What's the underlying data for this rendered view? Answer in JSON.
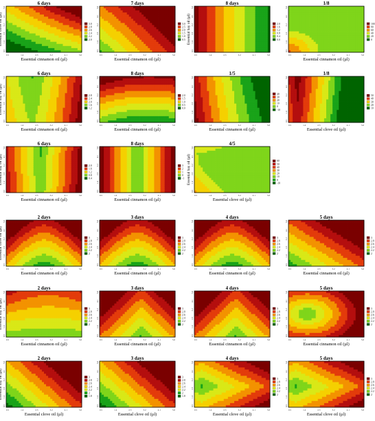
{
  "colors": {
    "scale": [
      "#006400",
      "#19a319",
      "#7fd51a",
      "#d9e817",
      "#f5d000",
      "#f39200",
      "#e33b0b",
      "#b40e0e",
      "#7a0000"
    ]
  },
  "x_ticks": [
    "0.5",
    "1.4",
    "2.3",
    "3.2",
    "4.1",
    "5.0"
  ],
  "charts": [
    {
      "title": "6 days",
      "xlabel": "Essential cinnamon oil (µl)",
      "ylabel": "Essential clove oil (µl)",
      "legend": [
        "3.0",
        "2.8",
        "2.6",
        "2.4",
        "2.2",
        "2.0"
      ],
      "pattern": "a"
    },
    {
      "title": "7 days",
      "xlabel": "Essential cinnamon oil (µl)",
      "ylabel": "",
      "legend": [
        "3.0",
        "2.5",
        "2.0",
        "1.5",
        "1.0",
        "0.5"
      ],
      "pattern": "b"
    },
    {
      "title": "8 days",
      "xlabel": "",
      "ylabel": "Essential bay oil (µl)",
      "legend": [
        "2.0",
        "1.6",
        "1.2",
        "0.8",
        "0.4",
        "0.0"
      ],
      "pattern": "c"
    },
    {
      "title": "1/8",
      "xlabel": "Essential cinnamon oil (µl)",
      "ylabel": "",
      "legend": [
        "100",
        "80",
        "60",
        "40",
        "20",
        "0"
      ],
      "pattern": "d"
    },
    {
      "title": "6 days",
      "xlabel": "Essential cinnamon oil (µl)",
      "ylabel": "Essential bay oil (µl)",
      "legend": [
        "2.8",
        "2.4",
        "2.0",
        "1.6",
        "1.2"
      ],
      "pattern": "e"
    },
    {
      "title": "8 days",
      "xlabel": "Essential cinnamon oil (µl)",
      "ylabel": "",
      "legend": [
        "2.0",
        "1.5",
        "1.0",
        "0.5",
        "0.0"
      ],
      "pattern": "f"
    },
    {
      "title": "1/5",
      "xlabel": "Essential cinnamon oil (µl)",
      "ylabel": "",
      "legend": [
        "40",
        "30",
        "20",
        "10",
        "0",
        "-10"
      ],
      "pattern": "g"
    },
    {
      "title": "1/8",
      "xlabel": "Essential clove oil (µl)",
      "ylabel": "",
      "legend": [
        "50",
        "40",
        "30",
        "20",
        "10"
      ],
      "pattern": "h"
    },
    {
      "title": "6 days",
      "xlabel": "Essential cinnamon oil (µl)",
      "ylabel": "Essential bay oil (µl)",
      "legend": [
        "2.0",
        "1.6",
        "1.2",
        "0.8",
        "0.4"
      ],
      "pattern": "i"
    },
    {
      "title": "8 days",
      "xlabel": "Essential cinnamon oil (µl)",
      "ylabel": "",
      "legend": [
        "3",
        "2",
        "1",
        "0",
        "-1"
      ],
      "pattern": "j"
    },
    {
      "title": "4/5",
      "xlabel": "Essential clove oil (µl)",
      "ylabel": "Essential bay oil (µl)",
      "legend": [
        "60",
        "50",
        "40",
        "30",
        "20",
        "10",
        "0",
        "-10"
      ],
      "pattern": "k"
    },
    {
      "title": "2 days",
      "xlabel": "Essential cinnamon oil (µl)",
      "ylabel": "Essential clove oil (µl)",
      "legend": [
        "3",
        "2.8",
        "2.6",
        "2.4",
        "2.2",
        "2"
      ],
      "pattern": "l"
    },
    {
      "title": "3 days",
      "xlabel": "Essential cinnamon oil (µl)",
      "ylabel": "",
      "legend": [
        "3",
        "2.8",
        "2.6",
        "2.4",
        "2.2",
        "2"
      ],
      "pattern": "l"
    },
    {
      "title": "4 days",
      "xlabel": "Essential cinnamon oil (µl)",
      "ylabel": "",
      "legend": [
        "3",
        "2.8",
        "2.6",
        "2.4",
        "2.2",
        "2"
      ],
      "pattern": "l"
    },
    {
      "title": "5 days",
      "xlabel": "Essential cinnamon oil (µl)",
      "ylabel": "",
      "legend": [
        "3",
        "2.8",
        "2.6",
        "2.4",
        "2.2",
        "2"
      ],
      "pattern": "m"
    },
    {
      "title": "2 days",
      "xlabel": "Essential cinnamon oil (µl)",
      "ylabel": "Essential bay oil (µl)",
      "legend": [
        "3",
        "2.8",
        "2.6",
        "2.4",
        "2.2",
        "2"
      ],
      "pattern": "n"
    },
    {
      "title": "3 days",
      "xlabel": "Essential cinnamon oil (µl)",
      "ylabel": "",
      "legend": [
        "3",
        "2.8",
        "2.6",
        "2.4",
        "2.2",
        "2"
      ],
      "pattern": "o"
    },
    {
      "title": "4 days",
      "xlabel": "Essential cinnamon oil (µl)",
      "ylabel": "",
      "legend": [
        "3",
        "2.8",
        "2.6",
        "2.4",
        "2.2",
        "2"
      ],
      "pattern": "o"
    },
    {
      "title": "5 days",
      "xlabel": "Essential cinnamon oil (µl)",
      "ylabel": "",
      "legend": [
        "3",
        "2.8",
        "2.6",
        "2.4",
        "2.2",
        "2"
      ],
      "pattern": "p"
    },
    {
      "title": "2 days",
      "xlabel": "Essential clove oil (µl)",
      "ylabel": "Essential bay oil (µl)",
      "legend": [
        "3",
        "2.8",
        "2.6",
        "2.4",
        "2.2",
        "2",
        "1.8"
      ],
      "pattern": "q"
    },
    {
      "title": "3 days",
      "xlabel": "Essential clove oil (µl)",
      "ylabel": "",
      "legend": [
        "3",
        "2.8",
        "2.6",
        "2.4",
        "2.2",
        "2",
        "1.8"
      ],
      "pattern": "q"
    },
    {
      "title": "4 days",
      "xlabel": "Essential clove oil (µl)",
      "ylabel": "",
      "legend": [
        "3",
        "2.8",
        "2.6",
        "2.4",
        "2.2",
        "2"
      ],
      "pattern": "r"
    },
    {
      "title": "5 days",
      "xlabel": "Essential clove oil (µl)",
      "ylabel": "",
      "legend": [
        "3",
        "2.8",
        "2.6",
        "2.4",
        "2.2",
        "2"
      ],
      "pattern": "r"
    }
  ],
  "chart_data": [
    {
      "type": "heatmap",
      "title": "6 days",
      "xlabel": "Essential cinnamon oil (µl)",
      "ylabel": "Essential clove oil (µl)",
      "x_ticks": [
        0.5,
        1.4,
        2.3,
        3.2,
        4.1,
        5.0
      ],
      "legend": [
        3.0,
        2.8,
        2.6,
        2.4,
        2.2,
        2.0
      ]
    },
    {
      "type": "heatmap",
      "title": "7 days",
      "xlabel": "Essential cinnamon oil (µl)",
      "ylabel": "",
      "x_ticks": [
        0.5,
        1.4,
        2.3,
        3.2,
        4.1,
        5.0
      ],
      "legend": [
        3.0,
        2.5,
        2.0,
        1.5,
        1.0,
        0.5
      ]
    },
    {
      "type": "heatmap",
      "title": "8 days",
      "xlabel": "",
      "ylabel": "Essential bay oil (µl)",
      "x_ticks": [
        0.5,
        1.4,
        2.3,
        3.2,
        4.1,
        5.0
      ],
      "legend": [
        2.0,
        1.6,
        1.2,
        0.8,
        0.4,
        0.0
      ]
    },
    {
      "type": "heatmap",
      "title": "1/8",
      "xlabel": "Essential cinnamon oil (µl)",
      "ylabel": "",
      "x_ticks": [
        0.5,
        1.4,
        2.3,
        3.2,
        4.1,
        5.0
      ],
      "legend": [
        100,
        80,
        60,
        40,
        20,
        0
      ]
    },
    {
      "type": "heatmap",
      "title": "6 days",
      "xlabel": "Essential cinnamon oil (µl)",
      "ylabel": "Essential bay oil (µl)",
      "x_ticks": [
        0.5,
        1.4,
        2.3,
        3.2,
        4.1,
        5.0
      ],
      "legend": [
        2.8,
        2.4,
        2.0,
        1.6,
        1.2
      ]
    },
    {
      "type": "heatmap",
      "title": "8 days",
      "xlabel": "Essential cinnamon oil (µl)",
      "ylabel": "",
      "x_ticks": [
        0.5,
        1.4,
        2.3,
        3.2,
        4.1,
        5.0
      ],
      "legend": [
        2.0,
        1.5,
        1.0,
        0.5,
        0.0
      ]
    },
    {
      "type": "heatmap",
      "title": "1/5",
      "xlabel": "Essential cinnamon oil (µl)",
      "ylabel": "",
      "x_ticks": [
        0.5,
        1.4,
        2.3,
        3.2,
        4.1,
        5.0
      ],
      "legend": [
        40,
        30,
        20,
        10,
        0,
        -10
      ]
    },
    {
      "type": "heatmap",
      "title": "1/8",
      "xlabel": "Essential clove oil (µl)",
      "ylabel": "",
      "x_ticks": [
        0.5,
        1.4,
        2.3,
        3.2,
        4.1,
        5.0
      ],
      "legend": [
        50,
        40,
        30,
        20,
        10
      ]
    },
    {
      "type": "heatmap",
      "title": "6 days",
      "xlabel": "Essential cinnamon oil (µl)",
      "ylabel": "Essential bay oil (µl)",
      "x_ticks": [
        0.5,
        1.4,
        2.3,
        3.2,
        4.1,
        5.0
      ],
      "legend": [
        2.0,
        1.6,
        1.2,
        0.8,
        0.4
      ]
    },
    {
      "type": "heatmap",
      "title": "8 days",
      "xlabel": "Essential cinnamon oil (µl)",
      "ylabel": "",
      "x_ticks": [
        0.5,
        1.4,
        2.3,
        3.2,
        4.1,
        5.0
      ],
      "legend": [
        3,
        2,
        1,
        0,
        -1
      ]
    },
    {
      "type": "heatmap",
      "title": "4/5",
      "xlabel": "Essential clove oil (µl)",
      "ylabel": "Essential bay oil (µl)",
      "x_ticks": [
        0.5,
        1.4,
        2.3,
        3.2,
        4.1,
        5.0
      ],
      "legend": [
        60,
        50,
        40,
        30,
        20,
        10,
        0,
        -10
      ]
    },
    {
      "type": "heatmap",
      "title": "2 days",
      "xlabel": "Essential cinnamon oil (µl)",
      "ylabel": "Essential clove oil (µl)",
      "x_ticks": [
        0.5,
        1.4,
        2.3,
        3.2,
        4.1,
        5.0
      ],
      "legend": [
        3,
        2.8,
        2.6,
        2.4,
        2.2,
        2
      ]
    },
    {
      "type": "heatmap",
      "title": "3 days",
      "xlabel": "Essential cinnamon oil (µl)",
      "ylabel": "",
      "x_ticks": [
        0.5,
        1.4,
        2.3,
        3.2,
        4.1,
        5.0
      ],
      "legend": [
        3,
        2.8,
        2.6,
        2.4,
        2.2,
        2
      ]
    },
    {
      "type": "heatmap",
      "title": "4 days",
      "xlabel": "Essential cinnamon oil (µl)",
      "ylabel": "",
      "x_ticks": [
        0.5,
        1.4,
        2.3,
        3.2,
        4.1,
        5.0
      ],
      "legend": [
        3,
        2.8,
        2.6,
        2.4,
        2.2,
        2
      ]
    },
    {
      "type": "heatmap",
      "title": "5 days",
      "xlabel": "Essential cinnamon oil (µl)",
      "ylabel": "",
      "x_ticks": [
        0.5,
        1.4,
        2.3,
        3.2,
        4.1,
        5.0
      ],
      "legend": [
        3,
        2.8,
        2.6,
        2.4,
        2.2,
        2
      ]
    },
    {
      "type": "heatmap",
      "title": "2 days",
      "xlabel": "Essential cinnamon oil (µl)",
      "ylabel": "Essential bay oil (µl)",
      "x_ticks": [
        0.5,
        1.4,
        2.3,
        3.2,
        4.1,
        5.0
      ],
      "legend": [
        3,
        2.8,
        2.6,
        2.4,
        2.2,
        2
      ]
    },
    {
      "type": "heatmap",
      "title": "3 days",
      "xlabel": "Essential cinnamon oil (µl)",
      "ylabel": "",
      "x_ticks": [
        0.5,
        1.4,
        2.3,
        3.2,
        4.1,
        5.0
      ],
      "legend": [
        3,
        2.8,
        2.6,
        2.4,
        2.2,
        2
      ]
    },
    {
      "type": "heatmap",
      "title": "4 days",
      "xlabel": "Essential cinnamon oil (µl)",
      "ylabel": "",
      "x_ticks": [
        0.5,
        1.4,
        2.3,
        3.2,
        4.1,
        5.0
      ],
      "legend": [
        3,
        2.8,
        2.6,
        2.4,
        2.2,
        2
      ]
    },
    {
      "type": "heatmap",
      "title": "5 days",
      "xlabel": "Essential cinnamon oil (µl)",
      "ylabel": "",
      "x_ticks": [
        0.5,
        1.4,
        2.3,
        3.2,
        4.1,
        5.0
      ],
      "legend": [
        3,
        2.8,
        2.6,
        2.4,
        2.2,
        2
      ]
    },
    {
      "type": "heatmap",
      "title": "2 days",
      "xlabel": "Essential clove oil (µl)",
      "ylabel": "Essential bay oil (µl)",
      "x_ticks": [
        0.5,
        1.4,
        2.3,
        3.2,
        4.1,
        5.0
      ],
      "legend": [
        3,
        2.8,
        2.6,
        2.4,
        2.2,
        2,
        1.8
      ]
    },
    {
      "type": "heatmap",
      "title": "3 days",
      "xlabel": "Essential clove oil (µl)",
      "ylabel": "",
      "x_ticks": [
        0.5,
        1.4,
        2.3,
        3.2,
        4.1,
        5.0
      ],
      "legend": [
        3,
        2.8,
        2.6,
        2.4,
        2.2,
        2,
        1.8
      ]
    },
    {
      "type": "heatmap",
      "title": "4 days",
      "xlabel": "Essential clove oil (µl)",
      "ylabel": "",
      "x_ticks": [
        0.5,
        1.4,
        2.3,
        3.2,
        4.1,
        5.0
      ],
      "legend": [
        3,
        2.8,
        2.6,
        2.4,
        2.2,
        2
      ]
    },
    {
      "type": "heatmap",
      "title": "5 days",
      "xlabel": "Essential clove oil (µl)",
      "ylabel": "",
      "x_ticks": [
        0.5,
        1.4,
        2.3,
        3.2,
        4.1,
        5.0
      ],
      "legend": [
        3,
        2.8,
        2.6,
        2.4,
        2.2,
        2
      ]
    }
  ]
}
